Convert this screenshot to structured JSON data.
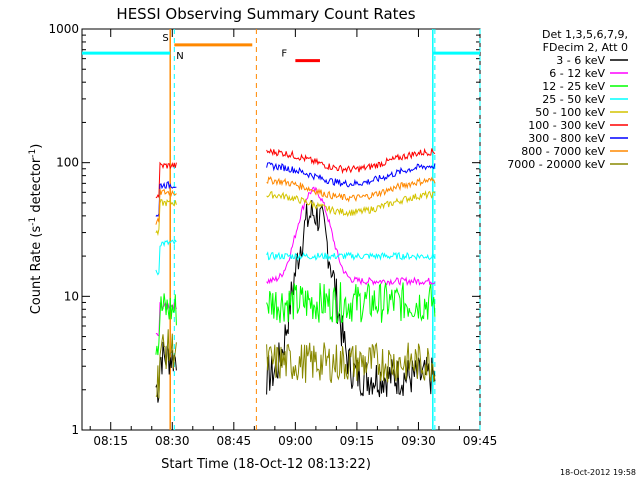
{
  "chart_data": {
    "type": "line",
    "title": "HESSI Observing Summary Count Rates",
    "xlabel": "Start Time (18-Oct-12 08:13:22)",
    "ylabel_main": "Count Rate (s",
    "ylabel_sup1": "-1",
    "ylabel_mid": " detector",
    "ylabel_sup2": "-1",
    "ylabel_end": ")",
    "yscale": "log",
    "ylim": [
      1,
      1000
    ],
    "xlim_minutes": [
      8.0,
      105.0
    ],
    "x_ticks": [
      {
        "label": "08:15",
        "min": 15
      },
      {
        "label": "08:30",
        "min": 30
      },
      {
        "label": "08:45",
        "min": 45
      },
      {
        "label": "09:00",
        "min": 60
      },
      {
        "label": "09:15",
        "min": 75
      },
      {
        "label": "09:30",
        "min": 90
      },
      {
        "label": "09:45",
        "min": 105
      }
    ],
    "y_ticks": [
      {
        "label": "1",
        "v": 1
      },
      {
        "label": "10",
        "v": 10
      },
      {
        "label": "100",
        "v": 100
      },
      {
        "label": "1000",
        "v": 1000
      }
    ],
    "legend_header": [
      "Det 1,3,5,6,7,9,",
      "FDecim 2, Att 0"
    ],
    "series": [
      {
        "name": "3 - 6 keV",
        "color": "#000000"
      },
      {
        "name": "6 - 12 keV",
        "color": "#ff00ff"
      },
      {
        "name": "12 - 25 keV",
        "color": "#00ff00"
      },
      {
        "name": "25 - 50 keV",
        "color": "#00ffff"
      },
      {
        "name": "50 - 100 keV",
        "color": "#d4c400"
      },
      {
        "name": "100 - 300 keV",
        "color": "#ff0000"
      },
      {
        "name": "300 - 800 keV",
        "color": "#0000ff"
      },
      {
        "name": "800 - 7000 keV",
        "color": "#ff8800"
      },
      {
        "name": "7000 - 20000 keV",
        "color": "#888800"
      }
    ],
    "flags": [
      {
        "label": "S",
        "color": "#ff8800",
        "start_min": 30.5,
        "end_min": 49.5,
        "level": 760
      },
      {
        "label": "N",
        "color": "#00ffff",
        "start_min": 8.0,
        "end_min": 29.5,
        "level": 660
      },
      {
        "label": "N",
        "color": "#00ffff",
        "start_min": 93.5,
        "end_min": 105.0,
        "level": 660
      },
      {
        "label": "F",
        "color": "#ff0000",
        "start_min": 60.0,
        "end_min": 66.0,
        "level": 580
      }
    ],
    "intervals": [
      {
        "name": "saa",
        "color": "#ff8800",
        "start_min": 29.5,
        "end_min": 50.5
      },
      {
        "name": "night",
        "color": "#00ffff",
        "start_min": 30.5,
        "end_min": 94.0
      },
      {
        "name": "night-end",
        "color": "#00ffff",
        "start_min": 105.0,
        "end_min": 105.0
      }
    ],
    "segments": [
      {
        "start_min": 26.0,
        "end_min": 31.0,
        "levels": {
          "3 - 6 keV": 3.5,
          "6 - 12 keV": 8.5,
          "12 - 25 keV": 8.0,
          "25 - 50 keV": 25,
          "50 - 100 keV": 50,
          "100 - 300 keV": 95,
          "300 - 800 keV": 68,
          "800 - 7000 keV": 60,
          "7000 - 20000 keV": 4.0
        }
      },
      {
        "start_min": 53.0,
        "end_min": 94.0,
        "levels": {
          "3 - 6 keV": 2.5,
          "6 - 12 keV": 13,
          "12 - 25 keV": 9.0,
          "25 - 50 keV": 20,
          "50 - 100 keV": 50,
          "100 - 300 keV": 105,
          "300 - 800 keV": 82,
          "800 - 7000 keV": 64,
          "7000 - 20000 keV": 3.2
        }
      }
    ],
    "peak": {
      "time_min": 64.5,
      "series": [
        "3 - 6 keV",
        "6 - 12 keV"
      ],
      "peak_values": [
        42,
        62
      ]
    }
  },
  "footer": {
    "timestamp": "18-Oct-2012 19:58"
  }
}
